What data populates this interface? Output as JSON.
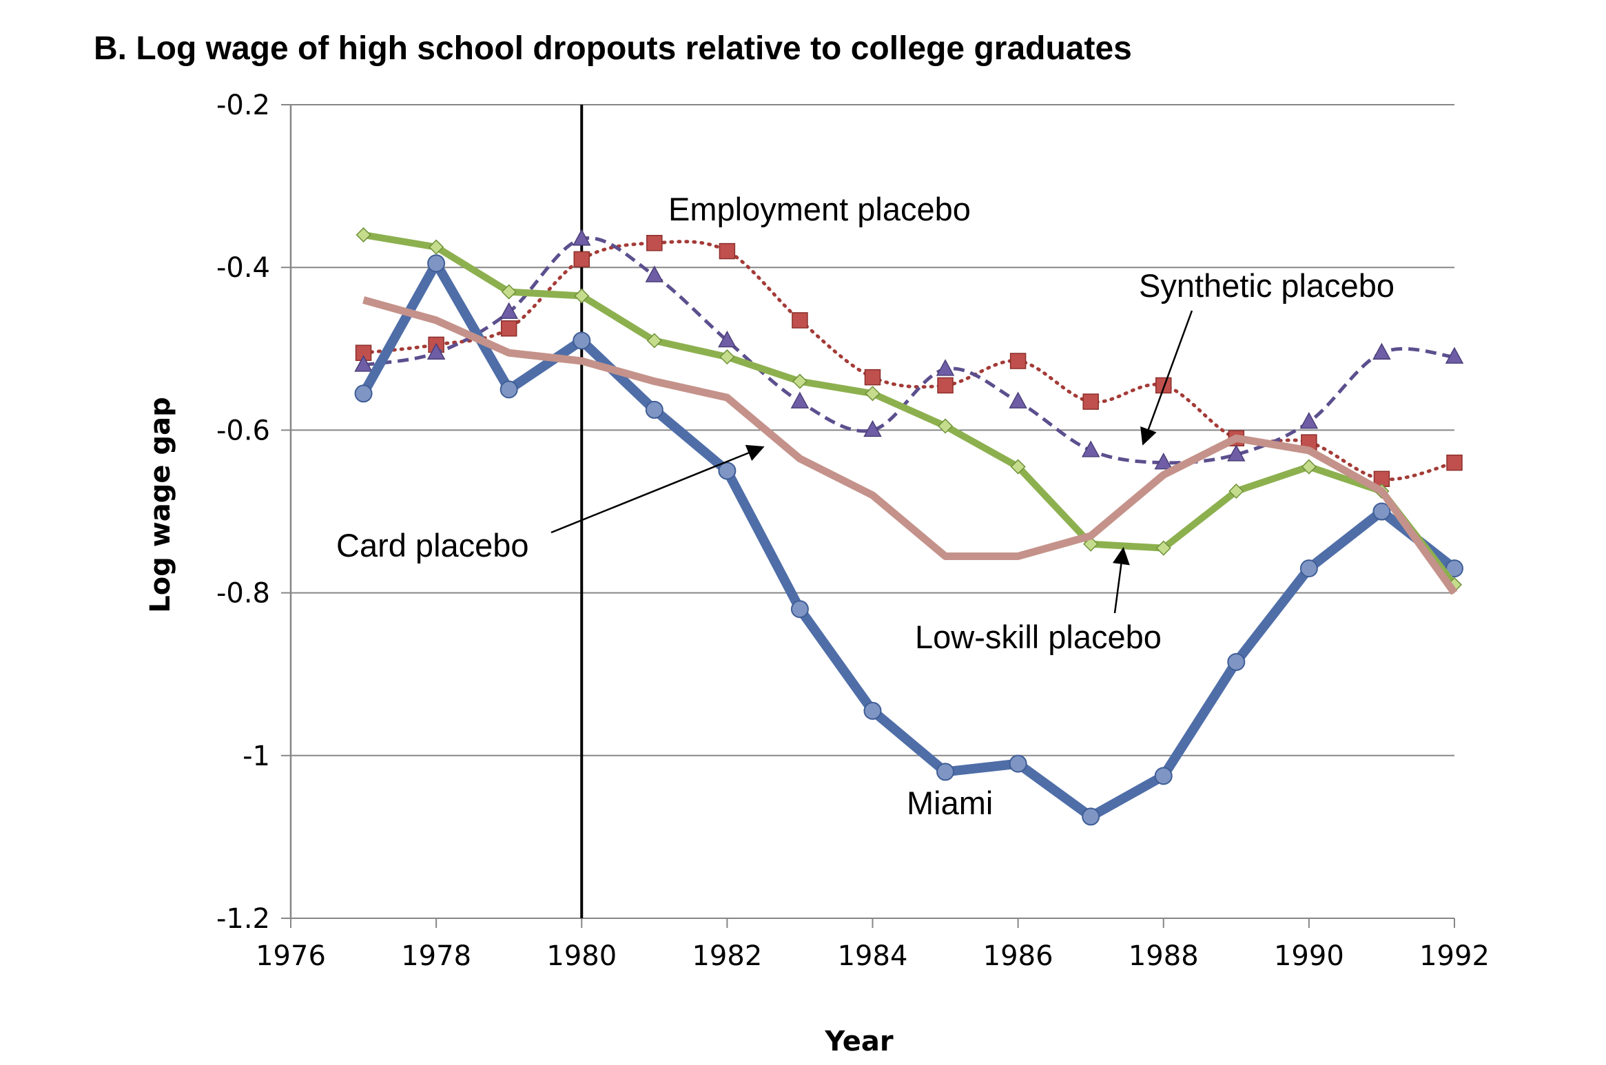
{
  "chart_data": {
    "type": "line",
    "title": "B. Log wage of high school dropouts relative to college graduates",
    "xlabel": "Year",
    "ylabel": "Log wage gap",
    "xlim": [
      1976,
      1992
    ],
    "ylim": [
      -1.2,
      -0.2
    ],
    "x_ticks": [
      1976,
      1978,
      1980,
      1982,
      1984,
      1986,
      1988,
      1990,
      1992
    ],
    "y_ticks": [
      -0.2,
      -0.4,
      -0.6,
      -0.8,
      -1,
      -1.2
    ],
    "y_tick_labels": [
      "-0.2",
      "-0.4",
      "-0.6",
      "-0.8",
      "-1",
      "-1.2"
    ],
    "grid": "horizontal",
    "vertical_line_x": 1980,
    "years": [
      1977,
      1978,
      1979,
      1980,
      1981,
      1982,
      1983,
      1984,
      1985,
      1986,
      1987,
      1988,
      1989,
      1990,
      1991,
      1992
    ],
    "series": [
      {
        "name": "Miami",
        "color": "#4f6ea8",
        "style": "solid-thick-circles",
        "values": [
          -0.555,
          -0.395,
          -0.55,
          -0.49,
          -0.575,
          -0.65,
          -0.82,
          -0.945,
          -1.02,
          -1.01,
          -1.075,
          -1.025,
          -0.885,
          -0.77,
          -0.7,
          -0.77
        ]
      },
      {
        "name": "Low-skill placebo",
        "color": "#8db04f",
        "style": "solid-diamonds",
        "values": [
          -0.36,
          -0.375,
          -0.43,
          -0.435,
          -0.49,
          -0.51,
          -0.54,
          -0.555,
          -0.595,
          -0.645,
          -0.74,
          -0.745,
          -0.675,
          -0.645,
          -0.675,
          -0.79
        ]
      },
      {
        "name": "Card placebo",
        "color": "#c4928a",
        "style": "solid-thick",
        "values": [
          -0.44,
          -0.465,
          -0.505,
          -0.515,
          -0.54,
          -0.56,
          -0.635,
          -0.68,
          -0.755,
          -0.755,
          -0.73,
          -0.655,
          -0.61,
          -0.625,
          -0.675,
          -0.8
        ]
      },
      {
        "name": "Employment placebo",
        "color": "#a33b37",
        "marker_fill": "#c0504d",
        "style": "dotted-squares",
        "values": [
          -0.505,
          -0.495,
          -0.475,
          -0.39,
          -0.37,
          -0.38,
          -0.465,
          -0.535,
          -0.545,
          -0.515,
          -0.565,
          -0.545,
          -0.61,
          -0.615,
          -0.66,
          -0.64
        ]
      },
      {
        "name": "Synthetic placebo",
        "color": "#5c4f8e",
        "marker_fill": "#6f5da6",
        "style": "dashed-triangles",
        "values": [
          -0.52,
          -0.505,
          -0.455,
          -0.365,
          -0.41,
          -0.49,
          -0.565,
          -0.6,
          -0.525,
          -0.565,
          -0.625,
          -0.64,
          -0.63,
          -0.59,
          -0.505,
          -0.51
        ]
      }
    ],
    "annotations": {
      "employment": "Employment placebo",
      "synthetic": "Synthetic placebo",
      "card": "Card placebo",
      "lowskill": "Low-skill placebo",
      "miami": "Miami"
    }
  }
}
